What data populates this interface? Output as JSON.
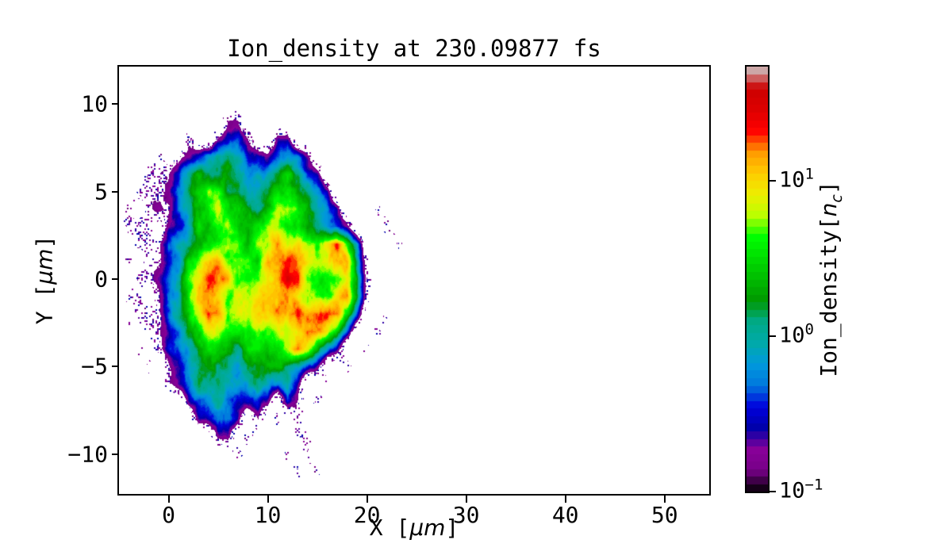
{
  "title": "Ion_density at 230.09877 fs",
  "axes": {
    "xlabel": {
      "prefix": "X [",
      "italic": "μm",
      "suffix": "]"
    },
    "ylabel": {
      "prefix": "Y [",
      "italic": "μm",
      "suffix": "]"
    },
    "xticks": [
      {
        "v": 0,
        "label": "0"
      },
      {
        "v": 10,
        "label": "10"
      },
      {
        "v": 20,
        "label": "20"
      },
      {
        "v": 30,
        "label": "30"
      },
      {
        "v": 40,
        "label": "40"
      },
      {
        "v": 50,
        "label": "50"
      }
    ],
    "yticks": [
      {
        "v": 10,
        "label": "10"
      },
      {
        "v": 5,
        "label": "5"
      },
      {
        "v": 0,
        "label": "0"
      },
      {
        "v": -5,
        "label": "−5"
      },
      {
        "v": -10,
        "label": "−10"
      }
    ],
    "xlim": [
      -5,
      54.5
    ],
    "ylim": [
      -12.27,
      12.13
    ]
  },
  "colorbar": {
    "label": {
      "prefix": "Ion_density[",
      "var": "n",
      "subscript": "c",
      "suffix": "]"
    },
    "ticks": [
      {
        "v": 10,
        "base": "10",
        "exp": "1"
      },
      {
        "v": 1,
        "base": "10",
        "exp": "0"
      },
      {
        "v": 0.1,
        "base": "10",
        "exp": "−1"
      }
    ],
    "vmin": 0.1,
    "vmax": 54,
    "scale": "log",
    "colormap": "nipy_spectral",
    "quantize_steps": 56,
    "colormap_stops": [
      [
        0.0,
        0,
        0,
        0
      ],
      [
        0.05,
        119,
        0,
        136
      ],
      [
        0.1,
        136,
        0,
        153
      ],
      [
        0.15,
        0,
        0,
        170
      ],
      [
        0.2,
        0,
        0,
        221
      ],
      [
        0.25,
        0,
        119,
        221
      ],
      [
        0.3,
        0,
        153,
        221
      ],
      [
        0.35,
        0,
        170,
        170
      ],
      [
        0.4,
        0,
        170,
        136
      ],
      [
        0.45,
        0,
        153,
        0
      ],
      [
        0.5,
        0,
        187,
        0
      ],
      [
        0.55,
        0,
        221,
        0
      ],
      [
        0.6,
        0,
        255,
        0
      ],
      [
        0.65,
        187,
        255,
        0
      ],
      [
        0.7,
        238,
        238,
        0
      ],
      [
        0.75,
        255,
        204,
        0
      ],
      [
        0.8,
        255,
        153,
        0
      ],
      [
        0.85,
        255,
        0,
        0
      ],
      [
        0.9,
        221,
        0,
        0
      ],
      [
        0.95,
        204,
        0,
        0
      ],
      [
        1.0,
        204,
        204,
        204
      ]
    ]
  },
  "chart_data": {
    "type": "heatmap",
    "title": "Ion_density at 230.09877 fs",
    "xlabel": "X [μm]",
    "ylabel": "Y [μm]",
    "colorbar_label": "Ion_density[n_c]",
    "xlim": [
      -5,
      54.5
    ],
    "ylim": [
      -12.27,
      12.13
    ],
    "x_ticks": [
      0,
      10,
      20,
      30,
      40,
      50
    ],
    "y_ticks": [
      10,
      5,
      0,
      -5,
      -10
    ],
    "color_scale": "log",
    "vmin": 0.1,
    "vmax": 54,
    "colormap": "nipy_spectral",
    "description": "Turbulent ion-density plasma blob from a PIC simulation: dense yellow/orange core (2-20 um, |y|<4) with red filament arcs, green/teal turbulent lobes above and below, blue/purple fringe, a sharp density nose at x~19.5 um with cyan rim, and sparse purple ion speckle halo out to x~-5..25, y~-11..10.",
    "density_grid": {
      "x_start": -6,
      "x_step": 1,
      "y_start": 12,
      "y_step": -1,
      "encoding": "char L in [0-9]: log10(n/nc) = -1 + 0.3*L ; '.' = vacuum",
      "rows": [
        "....................................",
        "....................................",
        "....................................",
        "............11......................",
        "........0..1221..11.................",
        ".....0.01234432212321...............",
        "....001234444433345421..............",
        "...00012345544344554321.............",
        "..0.01123456554456654321...0........",
        "..000.1235566555665544321...0.......",
        "...00023456666566766667863...0......",
        "..0.00235677666577877667740.........",
        "...001235677766677886545640.........",
        "..00.0235777666677876556740.........",
        "...00023468766666778777752..0.......",
        "..0.001245665555566787642..0........",
        "...0.0123455445555676421..0.........",
        "....0.0134444344444321..0...........",
        "......01244433343231..0.............",
        "........123432221.21.0..............",
        ".........12321.1.0.0................",
        "...........11.0....00...............",
        ".............0....0.0...............",
        "...................0.0..............",
        "....................................",
        "...................................."
      ]
    }
  }
}
